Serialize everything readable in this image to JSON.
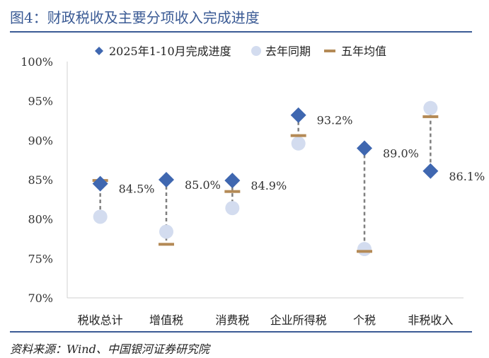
{
  "figure": {
    "title": "图4：财政税收及主要分项收入完成进度",
    "source": "资料来源：Wind、中国银河证券研究院"
  },
  "colors": {
    "title": "#3b5b95",
    "current": "#3f67b0",
    "last_year": "#d3dcef",
    "avg": "#b48a56",
    "connector": "#7f7f7f"
  },
  "chart_data": {
    "type": "scatter",
    "title": "",
    "xlabel": "",
    "ylabel": "",
    "ylim": [
      70,
      100
    ],
    "yticks": [
      {
        "value": 100,
        "label": "100%"
      },
      {
        "value": 95,
        "label": "95%"
      },
      {
        "value": 90,
        "label": "90%"
      },
      {
        "value": 85,
        "label": "85%"
      },
      {
        "value": 80,
        "label": "80%"
      },
      {
        "value": 75,
        "label": "75%"
      },
      {
        "value": 70,
        "label": "70%"
      }
    ],
    "grid": false,
    "legend_position": "top",
    "categories": [
      "税收总计",
      "增值税",
      "消费税",
      "企业所得税",
      "个税",
      "非税收入"
    ],
    "series": [
      {
        "name": "2025年1-10月完成进度",
        "marker": "diamond",
        "values": [
          84.5,
          85.0,
          84.9,
          93.2,
          89.0,
          86.1
        ],
        "labels": [
          "84.5%",
          "85.0%",
          "84.9%",
          "93.2%",
          "89.0%",
          "86.1%"
        ]
      },
      {
        "name": "去年同期",
        "marker": "circle",
        "values": [
          80.3,
          78.4,
          81.4,
          89.6,
          76.2,
          94.1
        ]
      },
      {
        "name": "五年均值",
        "marker": "dash",
        "values": [
          84.9,
          76.8,
          83.5,
          90.6,
          75.9,
          93.0
        ]
      }
    ]
  }
}
